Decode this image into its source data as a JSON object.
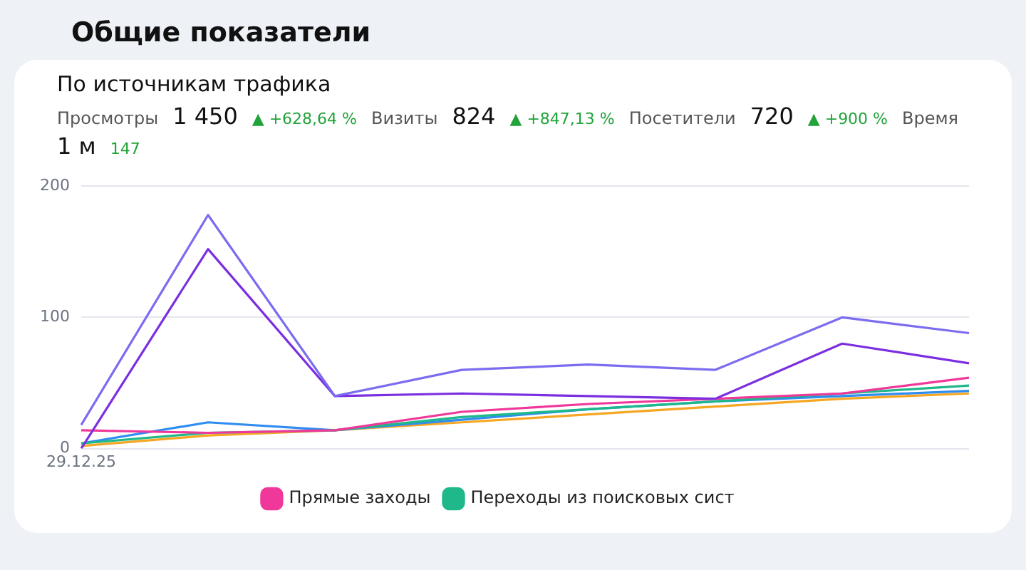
{
  "chart_data": {
    "type": "line",
    "title": "Общие показатели",
    "subtitle": "По источникам трафика",
    "annotations": [
      "Просмотры",
      "1 450",
      "▲ +628,64 %",
      "Визиты",
      "824",
      "▲ +847,13 %",
      "Посетители",
      "720",
      "▲ +900 %",
      "Время",
      "1 м",
      "147"
    ],
    "categories": [
      "29.12.25",
      null,
      null,
      null,
      null,
      null,
      null,
      null
    ],
    "series": [
      {
        "color": "#7b6cf0",
        "values": [
          18,
          178,
          40,
          60,
          64,
          60,
          100,
          88
        ]
      },
      {
        "color": "#7b2fe0",
        "values": [
          0,
          152,
          40,
          42,
          40,
          38,
          80,
          65
        ]
      },
      {
        "name": "Прямые заходы",
        "color": "#f0389a",
        "values": [
          14,
          12,
          14,
          28,
          34,
          38,
          42,
          54
        ]
      },
      {
        "name": "Переходы из поисковых сист",
        "color": "#1fb88a",
        "values": [
          4,
          12,
          14,
          24,
          30,
          36,
          42,
          48
        ]
      },
      {
        "color": "#2f8cf0",
        "values": [
          4,
          20,
          14,
          22,
          30,
          36,
          40,
          44
        ]
      },
      {
        "color": "#f5a623",
        "values": [
          2,
          10,
          14,
          20,
          26,
          32,
          38,
          42
        ]
      }
    ],
    "ylim": [
      0,
      200
    ],
    "yticks": [
      0,
      100,
      200
    ],
    "grid": "y",
    "legend": "bottom",
    "marker": "none",
    "line_style": "solid"
  }
}
